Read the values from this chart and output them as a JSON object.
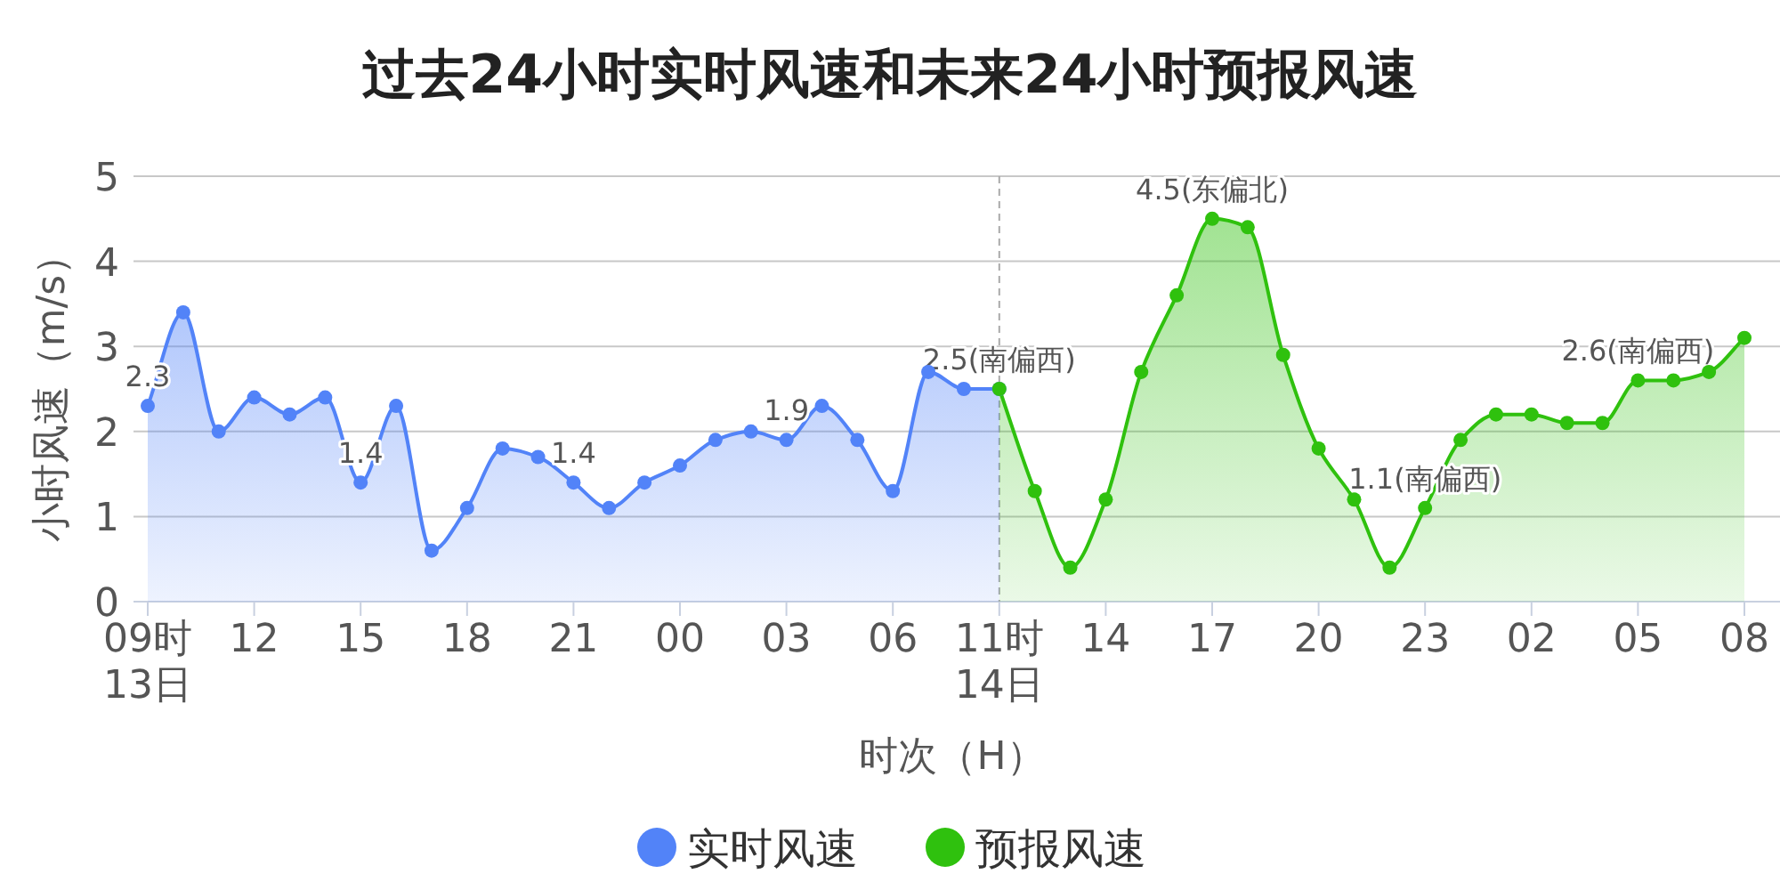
{
  "chart_data": {
    "type": "area",
    "title": "过去24小时实时风速和未来24小时预报风速",
    "xlabel": "时次（H）",
    "ylabel": "小时风速（m/s）",
    "categories": [
      "09时\n13日",
      null,
      null,
      "12",
      null,
      null,
      "15",
      null,
      null,
      "18",
      null,
      null,
      "21",
      null,
      null,
      "00",
      null,
      null,
      "03",
      null,
      null,
      "06",
      null,
      null,
      "11时\n14日",
      null,
      null,
      "14",
      null,
      null,
      "17",
      null,
      null,
      "20",
      null,
      null,
      "23",
      null,
      null,
      "02",
      null,
      null,
      "05",
      null,
      null,
      "08"
    ],
    "series": [
      {
        "name": "实时风速",
        "color": "#5283f8",
        "values": [
          2.3,
          3.4,
          2.0,
          2.4,
          2.2,
          2.4,
          1.4,
          2.3,
          0.6,
          1.1,
          1.8,
          1.7,
          1.4,
          1.1,
          1.4,
          1.6,
          1.9,
          2.0,
          1.9,
          2.3,
          1.9,
          1.3,
          2.7,
          2.5,
          2.5,
          null,
          null,
          null,
          null,
          null,
          null,
          null,
          null,
          null,
          null,
          null,
          null,
          null,
          null,
          null,
          null,
          null,
          null,
          null,
          null,
          null
        ],
        "value_labels": [
          "2.3",
          null,
          null,
          null,
          null,
          null,
          "1.4",
          null,
          null,
          null,
          null,
          null,
          "1.4",
          null,
          null,
          null,
          null,
          null,
          "1.9",
          null,
          null,
          null,
          null,
          null,
          "2.5(南偏西)",
          null,
          null,
          null,
          null,
          null,
          null,
          null,
          null,
          null,
          null,
          null,
          null,
          null,
          null,
          null,
          null,
          null,
          null,
          null,
          null,
          null
        ]
      },
      {
        "name": "预报风速",
        "color": "#2fc10e",
        "values": [
          null,
          null,
          null,
          null,
          null,
          null,
          null,
          null,
          null,
          null,
          null,
          null,
          null,
          null,
          null,
          null,
          null,
          null,
          null,
          null,
          null,
          null,
          null,
          null,
          2.5,
          1.3,
          0.4,
          1.2,
          2.7,
          3.6,
          4.5,
          4.4,
          2.9,
          1.8,
          1.2,
          0.4,
          1.1,
          1.9,
          2.2,
          2.2,
          2.1,
          2.1,
          2.6,
          2.6,
          2.7,
          3.1
        ],
        "value_labels": [
          null,
          null,
          null,
          null,
          null,
          null,
          null,
          null,
          null,
          null,
          null,
          null,
          null,
          null,
          null,
          null,
          null,
          null,
          null,
          null,
          null,
          null,
          null,
          null,
          null,
          null,
          null,
          null,
          null,
          null,
          "4.5(东偏北)",
          null,
          null,
          null,
          null,
          null,
          "1.1(南偏西)",
          null,
          null,
          null,
          null,
          null,
          "2.6(南偏西)",
          null,
          null,
          null
        ]
      }
    ],
    "ylim": [
      0,
      5
    ],
    "yticks": [
      0,
      1,
      2,
      3,
      4,
      5
    ],
    "grid": "y",
    "legend": "bottom",
    "marker": "circle",
    "ref_lines": [
      {
        "axis": "x",
        "value": "11时\n14日",
        "color": "#aaaaaa",
        "line_style": "dashed"
      }
    ]
  }
}
